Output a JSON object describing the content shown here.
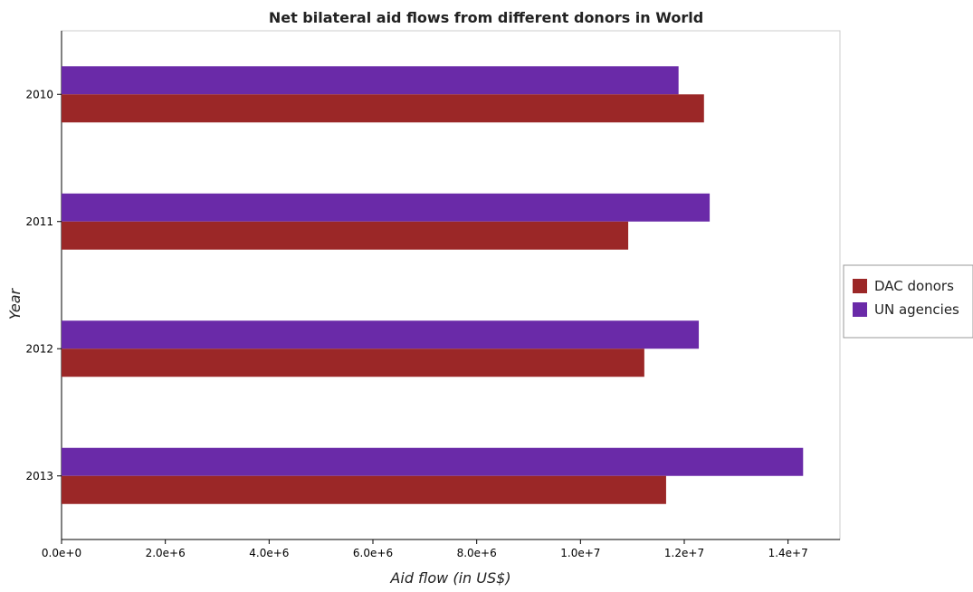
{
  "chart_data": {
    "type": "bar",
    "orientation": "horizontal",
    "title": "Net bilateral aid flows from different donors in World",
    "xlabel": "Aid flow (in US$)",
    "ylabel": "Year",
    "categories": [
      "2010",
      "2011",
      "2012",
      "2013"
    ],
    "series": [
      {
        "name": "DAC donors",
        "color": "#9b2727",
        "values": [
          12380000,
          10920000,
          11230000,
          11650000
        ]
      },
      {
        "name": "UN agencies",
        "color": "#6a2aa8",
        "values": [
          11890000,
          12490000,
          12280000,
          14290000
        ]
      }
    ],
    "xlim": [
      0,
      15000000
    ],
    "xticks": [
      0,
      2000000,
      4000000,
      6000000,
      8000000,
      10000000,
      12000000,
      14000000
    ],
    "xtick_labels": [
      "0.0e+0",
      "2.0e+6",
      "4.0e+6",
      "6.0e+6",
      "8.0e+6",
      "1.0e+7",
      "1.2e+7",
      "1.4e+7"
    ],
    "grid": false,
    "legend_position": "right"
  }
}
